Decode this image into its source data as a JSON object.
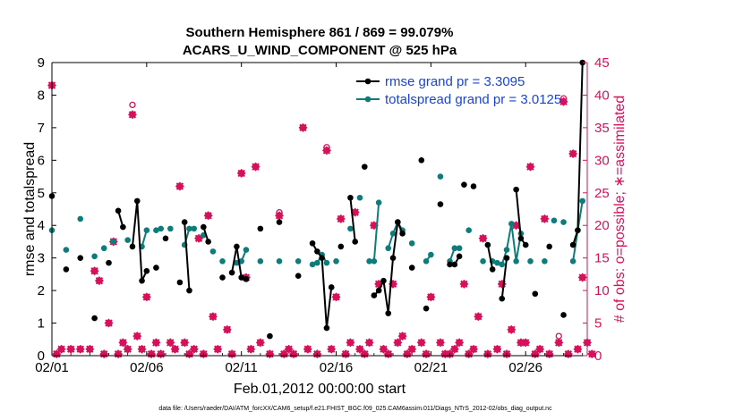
{
  "chart_data": {
    "type": "line",
    "title_line1": "Southern Hemisphere 861 / 869 = 99.079%",
    "title_line2": "ACARS_U_WIND_COMPONENT @ 525 hPa",
    "xlabel": "Feb.01,2012 00:00:00 start",
    "ylabel_left": "rmse and totalspread",
    "ylabel_right": "# of obs: o=possible; ∗=assimilated",
    "footer": "data file: /Users/raeder/DAI/ATM_forcXX/CAM6_setup/f.e21.FHIST_BGC.f09_025.CAM6assim.011/Diags_NTrS_2012-02/obs_diag_output.nc",
    "x_ticks": [
      "02/01",
      "02/06",
      "02/11",
      "02/16",
      "02/21",
      "02/26"
    ],
    "x_tick_days": [
      0,
      5,
      10,
      15,
      20,
      25
    ],
    "xlim": [
      0,
      28.25
    ],
    "ylim_left": [
      0,
      9
    ],
    "ylim_right": [
      0,
      45
    ],
    "y_ticks_left": [
      "0",
      "1",
      "2",
      "3",
      "4",
      "5",
      "6",
      "7",
      "8",
      "9"
    ],
    "y_ticks_right": [
      "0",
      "5",
      "10",
      "15",
      "20",
      "25",
      "30",
      "35",
      "40",
      "45"
    ],
    "colors": {
      "rmse": "#000000",
      "spread": "#0e7c7b",
      "obs": "#d6115a",
      "legend_text": "#1a44d8"
    },
    "legend": [
      {
        "name": "rmse grand pr = 3.3095",
        "color": "#000000"
      },
      {
        "name": "totalspread grand pr = 3.0125",
        "color": "#0e7c7b"
      }
    ],
    "rmse_segments": [
      [
        [
          0,
          4.9
        ]
      ],
      [
        [
          0.75,
          2.65
        ]
      ],
      [
        [
          1.5,
          3.0
        ]
      ],
      [
        [
          2.25,
          1.15
        ]
      ],
      [
        [
          3.0,
          2.85
        ]
      ],
      [
        [
          3.5,
          4.45
        ],
        [
          3.75,
          3.95
        ]
      ],
      [
        [
          4.25,
          3.35
        ],
        [
          4.5,
          4.75
        ],
        [
          4.75,
          2.3
        ],
        [
          5.0,
          2.6
        ]
      ],
      [
        [
          5.5,
          2.7
        ]
      ],
      [
        [
          6.0,
          3.6
        ]
      ],
      [
        [
          6.75,
          2.25
        ]
      ],
      [
        [
          7.0,
          4.1
        ],
        [
          7.25,
          2.0
        ]
      ],
      [
        [
          8.0,
          3.95
        ],
        [
          8.25,
          3.5
        ]
      ],
      [
        [
          9.0,
          2.4
        ]
      ],
      [
        [
          9.5,
          2.55
        ],
        [
          9.75,
          3.35
        ],
        [
          10.0,
          2.4
        ],
        [
          10.25,
          2.35
        ]
      ],
      [
        [
          11.0,
          3.9
        ]
      ],
      [
        [
          11.5,
          0.6
        ]
      ],
      [
        [
          12.0,
          4.1
        ]
      ],
      [
        [
          13.0,
          2.45
        ]
      ],
      [
        [
          13.75,
          3.45
        ],
        [
          14.0,
          3.2
        ],
        [
          14.25,
          3.0
        ],
        [
          14.5,
          0.85
        ],
        [
          14.75,
          2.1
        ]
      ],
      [
        [
          15.25,
          3.35
        ]
      ],
      [
        [
          15.75,
          4.85
        ],
        [
          16.0,
          3.5
        ]
      ],
      [
        [
          16.5,
          5.8
        ]
      ],
      [
        [
          17.0,
          1.85
        ],
        [
          17.25,
          2.0
        ],
        [
          17.5,
          2.3
        ],
        [
          17.75,
          1.3
        ],
        [
          18.0,
          3.0
        ],
        [
          18.25,
          4.1
        ],
        [
          18.5,
          3.75
        ]
      ],
      [
        [
          19.0,
          2.7
        ]
      ],
      [
        [
          19.5,
          6.0
        ]
      ],
      [
        [
          19.75,
          1.45
        ]
      ],
      [
        [
          20.5,
          4.65
        ]
      ],
      [
        [
          21.0,
          2.8
        ],
        [
          21.25,
          2.8
        ],
        [
          21.5,
          3.05
        ]
      ],
      [
        [
          21.75,
          5.25
        ]
      ],
      [
        [
          22.25,
          5.2
        ]
      ],
      [
        [
          23.0,
          3.4
        ],
        [
          23.25,
          2.65
        ]
      ],
      [
        [
          23.75,
          1.75
        ],
        [
          24.0,
          3.0
        ]
      ],
      [
        [
          24.5,
          5.1
        ],
        [
          24.75,
          3.6
        ],
        [
          25.0,
          3.4
        ]
      ],
      [
        [
          25.5,
          1.9
        ]
      ],
      [
        [
          26.25,
          3.35
        ]
      ],
      [
        [
          27.0,
          1.25
        ]
      ],
      [
        [
          27.5,
          3.4
        ],
        [
          27.75,
          3.85
        ],
        [
          28.0,
          9.0
        ]
      ]
    ],
    "spread_segments": [
      [
        [
          0,
          3.85
        ]
      ],
      [
        [
          0.75,
          3.25
        ]
      ],
      [
        [
          1.5,
          4.2
        ]
      ],
      [
        [
          2.25,
          3.05
        ]
      ],
      [
        [
          2.75,
          3.3
        ]
      ],
      [
        [
          3.25,
          3.5
        ]
      ],
      [
        [
          4.0,
          3.55
        ]
      ],
      [
        [
          4.75,
          3.35
        ],
        [
          5.0,
          3.85
        ]
      ],
      [
        [
          5.5,
          3.85
        ]
      ],
      [
        [
          5.75,
          3.9
        ]
      ],
      [
        [
          6.25,
          3.9
        ]
      ],
      [
        [
          7.0,
          3.4
        ],
        [
          7.25,
          3.9
        ],
        [
          7.5,
          3.9
        ]
      ],
      [
        [
          8.0,
          3.7
        ]
      ],
      [
        [
          8.5,
          3.2
        ]
      ],
      [
        [
          9.0,
          2.9
        ]
      ],
      [
        [
          9.75,
          2.85
        ],
        [
          10.0,
          2.9
        ],
        [
          10.25,
          3.25
        ]
      ],
      [
        [
          11.0,
          2.9
        ]
      ],
      [
        [
          12.0,
          2.9
        ]
      ],
      [
        [
          13.0,
          2.9
        ]
      ],
      [
        [
          13.75,
          2.8
        ],
        [
          14.0,
          2.85
        ],
        [
          14.25,
          3.1
        ],
        [
          14.5,
          2.85
        ]
      ],
      [
        [
          15.0,
          2.9
        ]
      ],
      [
        [
          15.75,
          3.9
        ]
      ],
      [
        [
          16.25,
          4.85
        ]
      ],
      [
        [
          16.75,
          2.9
        ],
        [
          17.0,
          2.9
        ],
        [
          17.25,
          4.7
        ]
      ],
      [
        [
          17.75,
          3.3
        ],
        [
          18.0,
          3.75
        ],
        [
          18.25,
          4.1
        ],
        [
          18.5,
          3.85
        ]
      ],
      [
        [
          19.0,
          3.45
        ]
      ],
      [
        [
          19.75,
          2.9
        ],
        [
          20.0,
          3.1
        ]
      ],
      [
        [
          20.5,
          5.5
        ]
      ],
      [
        [
          21.0,
          2.9
        ],
        [
          21.25,
          3.3
        ],
        [
          21.5,
          3.3
        ]
      ],
      [
        [
          22.0,
          3.85
        ]
      ],
      [
        [
          22.75,
          2.9
        ]
      ],
      [
        [
          23.25,
          2.9
        ],
        [
          23.5,
          2.85
        ]
      ],
      [
        [
          23.75,
          2.8
        ],
        [
          24.0,
          3.25
        ],
        [
          24.25,
          4.05
        ],
        [
          24.5,
          2.9
        ],
        [
          24.75,
          3.75
        ]
      ],
      [
        [
          25.25,
          2.9
        ]
      ],
      [
        [
          26.0,
          2.9
        ]
      ],
      [
        [
          26.5,
          4.15
        ]
      ],
      [
        [
          27.0,
          4.1
        ]
      ],
      [
        [
          27.5,
          2.9
        ],
        [
          27.75,
          3.85
        ],
        [
          28.0,
          4.75
        ]
      ]
    ],
    "obs_possible": [
      [
        0,
        41.5
      ],
      [
        0.25,
        0.25
      ],
      [
        0.5,
        1
      ],
      [
        1,
        1
      ],
      [
        1.5,
        1
      ],
      [
        2,
        1
      ],
      [
        2.25,
        13
      ],
      [
        2.5,
        11.5
      ],
      [
        2.75,
        0.25
      ],
      [
        3,
        5
      ],
      [
        3.25,
        17.5
      ],
      [
        3.5,
        0.25
      ],
      [
        3.75,
        2
      ],
      [
        4,
        1
      ],
      [
        4.25,
        38.5
      ],
      [
        4.5,
        3
      ],
      [
        4.75,
        1
      ],
      [
        5,
        9
      ],
      [
        5.25,
        0.25
      ],
      [
        5.5,
        2
      ],
      [
        5.75,
        0.25
      ],
      [
        6.25,
        2
      ],
      [
        6.5,
        1
      ],
      [
        6.75,
        26
      ],
      [
        7,
        2
      ],
      [
        7.25,
        0.25
      ],
      [
        7.5,
        1
      ],
      [
        7.75,
        18
      ],
      [
        8,
        0.25
      ],
      [
        8.25,
        21.5
      ],
      [
        8.5,
        6
      ],
      [
        8.75,
        1
      ],
      [
        9.25,
        4
      ],
      [
        9.5,
        0.25
      ],
      [
        10,
        28
      ],
      [
        10.25,
        12
      ],
      [
        10.5,
        1
      ],
      [
        10.75,
        29
      ],
      [
        11,
        2
      ],
      [
        11.5,
        0.25
      ],
      [
        12,
        22
      ],
      [
        12.25,
        0.25
      ],
      [
        12.5,
        1
      ],
      [
        12.75,
        0.25
      ],
      [
        13.25,
        35
      ],
      [
        13.5,
        1
      ],
      [
        14,
        0.25
      ],
      [
        14.5,
        32
      ],
      [
        14.75,
        1
      ],
      [
        15,
        9
      ],
      [
        15.25,
        21
      ],
      [
        15.5,
        0.25
      ],
      [
        15.75,
        2
      ],
      [
        16,
        22
      ],
      [
        16.25,
        1
      ],
      [
        16.5,
        0.25
      ],
      [
        16.75,
        2
      ],
      [
        17,
        20
      ],
      [
        17.25,
        11
      ],
      [
        17.5,
        1
      ],
      [
        17.75,
        0.25
      ],
      [
        18,
        11
      ],
      [
        18.25,
        2
      ],
      [
        18.5,
        3
      ],
      [
        18.75,
        0.25
      ],
      [
        19,
        1
      ],
      [
        19.5,
        2
      ],
      [
        19.75,
        0.25
      ],
      [
        20,
        9
      ],
      [
        20.5,
        2
      ],
      [
        20.75,
        0.25
      ],
      [
        21,
        0.25
      ],
      [
        21.25,
        1
      ],
      [
        21.5,
        2
      ],
      [
        21.75,
        11
      ],
      [
        22,
        0.25
      ],
      [
        22.25,
        1
      ],
      [
        22.5,
        6
      ],
      [
        22.75,
        18
      ],
      [
        23,
        0.25
      ],
      [
        23.5,
        1
      ],
      [
        23.75,
        11
      ],
      [
        24,
        0.25
      ],
      [
        24.25,
        4
      ],
      [
        24.5,
        20
      ],
      [
        24.75,
        2
      ],
      [
        25,
        2
      ],
      [
        25.25,
        29
      ],
      [
        25.5,
        0.25
      ],
      [
        25.75,
        1
      ],
      [
        26,
        21
      ],
      [
        26.25,
        0.25
      ],
      [
        26.75,
        3
      ],
      [
        27,
        39.5
      ],
      [
        27.25,
        0.25
      ],
      [
        27.5,
        31
      ],
      [
        27.75,
        1
      ],
      [
        28,
        12
      ],
      [
        28.25,
        2
      ],
      [
        28.5,
        0.25
      ]
    ],
    "obs_assimilated": [
      [
        0,
        41.5
      ],
      [
        0.25,
        0.25
      ],
      [
        0.5,
        1
      ],
      [
        1,
        1
      ],
      [
        1.5,
        1
      ],
      [
        2,
        1
      ],
      [
        2.25,
        13
      ],
      [
        2.5,
        11.5
      ],
      [
        2.75,
        0.25
      ],
      [
        3,
        5
      ],
      [
        3.25,
        17.5
      ],
      [
        3.5,
        0.25
      ],
      [
        3.75,
        2
      ],
      [
        4,
        1
      ],
      [
        4.25,
        37
      ],
      [
        4.5,
        3
      ],
      [
        4.75,
        1
      ],
      [
        5,
        9
      ],
      [
        5.25,
        0.25
      ],
      [
        5.5,
        2
      ],
      [
        5.75,
        0.25
      ],
      [
        6.25,
        2
      ],
      [
        6.5,
        1
      ],
      [
        6.75,
        26
      ],
      [
        7,
        2
      ],
      [
        7.25,
        0.25
      ],
      [
        7.5,
        1
      ],
      [
        7.75,
        18
      ],
      [
        8,
        0.25
      ],
      [
        8.25,
        21.5
      ],
      [
        8.5,
        6
      ],
      [
        8.75,
        1
      ],
      [
        9.25,
        4
      ],
      [
        9.5,
        0.25
      ],
      [
        10,
        28
      ],
      [
        10.25,
        12
      ],
      [
        10.5,
        1
      ],
      [
        10.75,
        29
      ],
      [
        11,
        2
      ],
      [
        11.5,
        0.25
      ],
      [
        12,
        21.5
      ],
      [
        12.25,
        0.25
      ],
      [
        12.5,
        1
      ],
      [
        12.75,
        0.25
      ],
      [
        13.25,
        35
      ],
      [
        13.5,
        1
      ],
      [
        14,
        0.25
      ],
      [
        14.5,
        31.5
      ],
      [
        14.75,
        1
      ],
      [
        15,
        9
      ],
      [
        15.25,
        21
      ],
      [
        15.5,
        0.25
      ],
      [
        15.75,
        2
      ],
      [
        16,
        22
      ],
      [
        16.25,
        1
      ],
      [
        16.5,
        0.25
      ],
      [
        16.75,
        2
      ],
      [
        17,
        20
      ],
      [
        17.25,
        11
      ],
      [
        17.5,
        1
      ],
      [
        17.75,
        0.25
      ],
      [
        18,
        11
      ],
      [
        18.25,
        2
      ],
      [
        18.5,
        3
      ],
      [
        18.75,
        0.25
      ],
      [
        19,
        1
      ],
      [
        19.5,
        2
      ],
      [
        19.75,
        0.25
      ],
      [
        20,
        9
      ],
      [
        20.5,
        2
      ],
      [
        20.75,
        0.25
      ],
      [
        21,
        0.25
      ],
      [
        21.25,
        1
      ],
      [
        21.5,
        2
      ],
      [
        21.75,
        11
      ],
      [
        22,
        0.25
      ],
      [
        22.25,
        1
      ],
      [
        22.5,
        6
      ],
      [
        22.75,
        18
      ],
      [
        23,
        0.25
      ],
      [
        23.5,
        1
      ],
      [
        23.75,
        11
      ],
      [
        24,
        0.25
      ],
      [
        24.25,
        4
      ],
      [
        24.5,
        20
      ],
      [
        24.75,
        2
      ],
      [
        25,
        2
      ],
      [
        25.25,
        29
      ],
      [
        25.5,
        0.25
      ],
      [
        25.75,
        1
      ],
      [
        26,
        21
      ],
      [
        26.25,
        0.25
      ],
      [
        26.75,
        2
      ],
      [
        27,
        39
      ],
      [
        27.25,
        0.25
      ],
      [
        27.5,
        31
      ],
      [
        27.75,
        1
      ],
      [
        28,
        12
      ],
      [
        28.25,
        2
      ],
      [
        28.5,
        0.25
      ]
    ]
  }
}
